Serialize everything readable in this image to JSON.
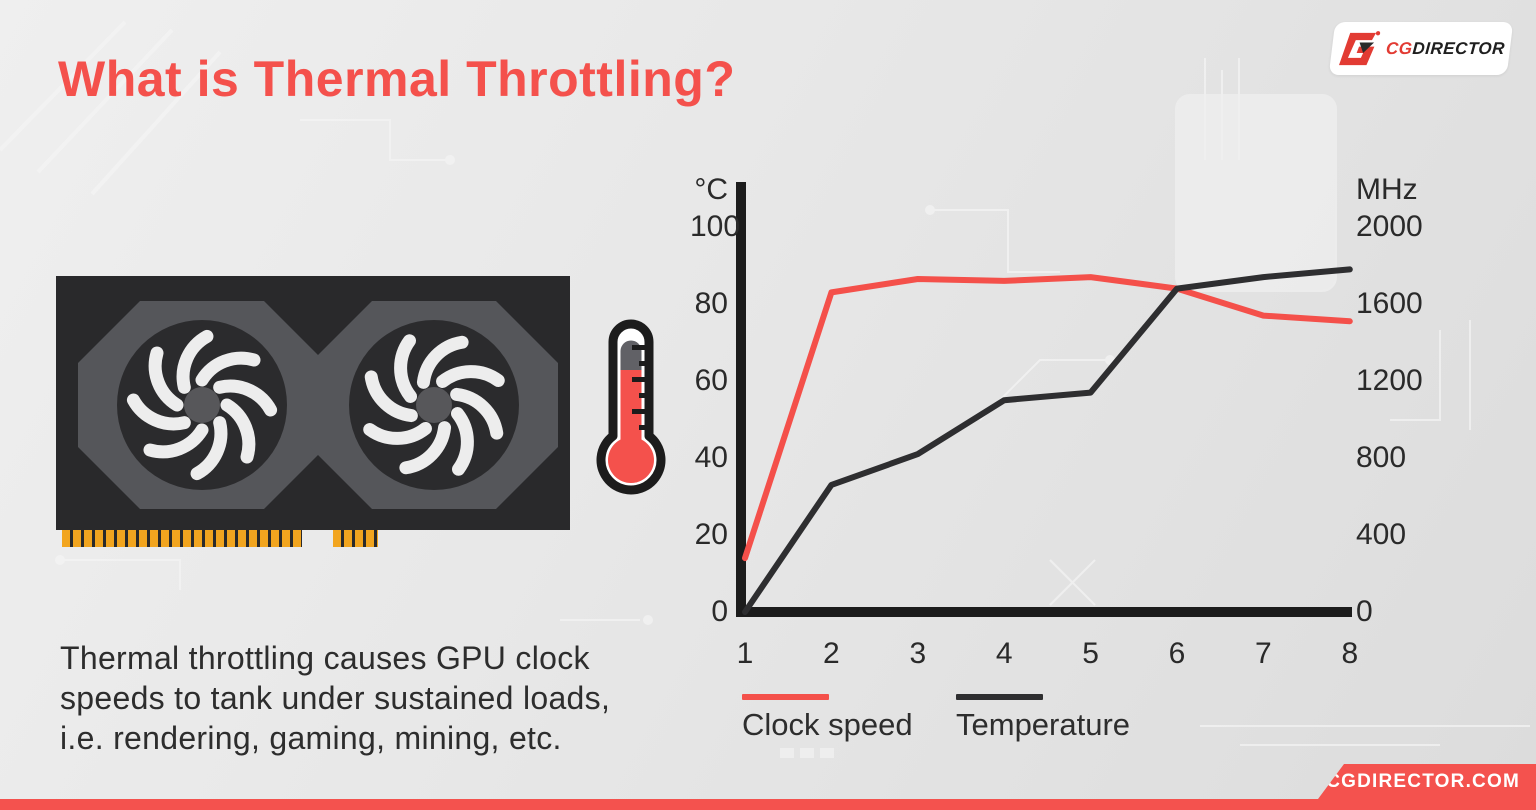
{
  "header": {
    "title": "What is Thermal Throttling?"
  },
  "logo": {
    "brand_cg": "CG",
    "brand_director": "DIRECTOR"
  },
  "description": {
    "lines": [
      "Thermal throttling causes GPU clock",
      "speeds to tank under sustained loads,",
      "i.e. rendering, gaming, mining, etc."
    ]
  },
  "footer": {
    "site": "CGDIRECTOR.COM"
  },
  "colors": {
    "accent": "#f4514c",
    "clock_line": "#f4504a",
    "temperature_line": "#2e2e30",
    "axis": "#1c1c1c",
    "connector_pins": "#f2a51f"
  },
  "chart_data": {
    "type": "line",
    "x": [
      1,
      2,
      3,
      4,
      5,
      6,
      7,
      8
    ],
    "x_axis": {
      "ticks": [
        1,
        2,
        3,
        4,
        5,
        6,
        7,
        8
      ]
    },
    "left_axis": {
      "label": "°C",
      "ticks": [
        100,
        80,
        60,
        40,
        20,
        0
      ],
      "range": [
        0,
        100
      ]
    },
    "right_axis": {
      "label": "MHz",
      "ticks": [
        2000,
        1600,
        1200,
        800,
        400,
        0
      ],
      "range": [
        0,
        2000
      ]
    },
    "series": [
      {
        "name": "Clock speed",
        "axis": "right",
        "unit": "MHz",
        "color": "#f4504a",
        "values": [
          280,
          1660,
          1730,
          1720,
          1740,
          1680,
          1540,
          1510
        ]
      },
      {
        "name": "Temperature",
        "axis": "left",
        "unit": "°C",
        "color": "#2e2e30",
        "values": [
          0,
          33,
          41,
          55,
          57,
          84,
          87,
          89
        ]
      }
    ],
    "grid": false,
    "legend_position": "bottom-left"
  }
}
